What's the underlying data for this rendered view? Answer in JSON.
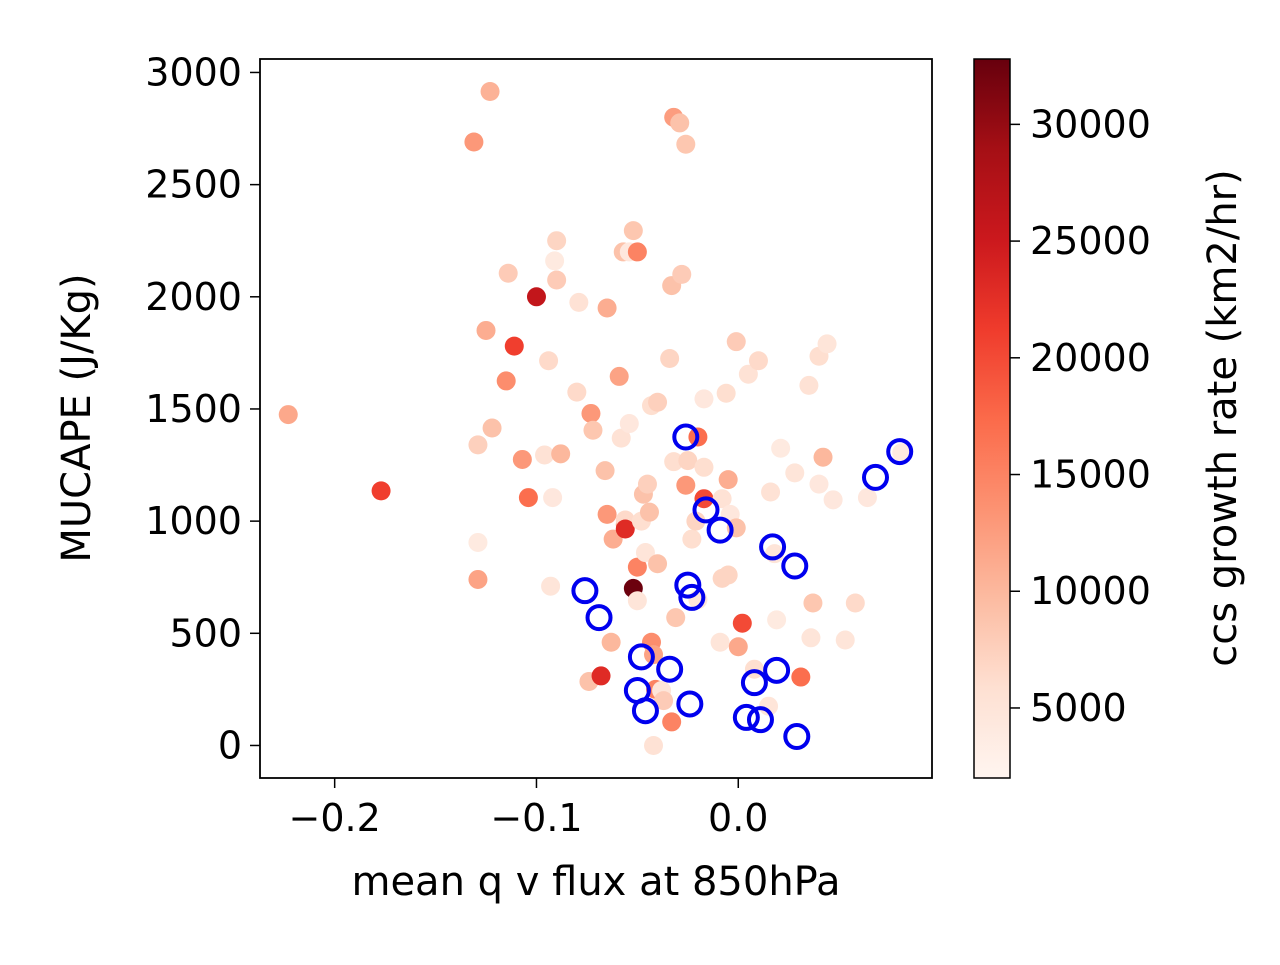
{
  "chart_data": {
    "type": "scatter",
    "title": "",
    "xlabel": "mean q v flux at 850hPa",
    "ylabel": "MUCAPE (J/Kg)",
    "xlim": [
      -0.237,
      0.096
    ],
    "ylim": [
      -145,
      3060
    ],
    "xticks": [
      -0.2,
      -0.1,
      0.0
    ],
    "xtick_labels": [
      "−0.2",
      "−0.1",
      "0.0"
    ],
    "yticks": [
      0,
      500,
      1000,
      1500,
      2000,
      2500,
      3000
    ],
    "ytick_labels": [
      "0",
      "500",
      "1000",
      "1500",
      "2000",
      "2500",
      "3000"
    ],
    "grid": false,
    "colorbar": {
      "label": "ccs growth rate (km2/hr)",
      "colormap": "Reds",
      "range": [
        2000,
        32800
      ],
      "ticks": [
        5000,
        10000,
        15000,
        20000,
        25000,
        30000
      ],
      "tick_labels": [
        "5000",
        "10000",
        "15000",
        "20000",
        "25000",
        "30000"
      ]
    },
    "series": [
      {
        "marker": "filled-circle",
        "points": [
          [
            -0.223,
            1475,
            11500
          ],
          [
            -0.177,
            1135,
            21000
          ],
          [
            -0.131,
            2690,
            13000
          ],
          [
            -0.123,
            2915,
            10500
          ],
          [
            -0.125,
            1850,
            11000
          ],
          [
            -0.129,
            1340,
            7500
          ],
          [
            -0.129,
            905,
            4000
          ],
          [
            -0.129,
            740,
            12000
          ],
          [
            -0.122,
            1415,
            9000
          ],
          [
            -0.114,
            2105,
            8000
          ],
          [
            -0.115,
            1625,
            14000
          ],
          [
            -0.111,
            1780,
            21000
          ],
          [
            -0.107,
            1275,
            13000
          ],
          [
            -0.104,
            1105,
            17000
          ],
          [
            -0.1,
            2000,
            26000
          ],
          [
            -0.096,
            1295,
            5500
          ],
          [
            -0.094,
            1715,
            6500
          ],
          [
            -0.093,
            710,
            5000
          ],
          [
            -0.092,
            1105,
            4500
          ],
          [
            -0.091,
            2160,
            4000
          ],
          [
            -0.09,
            2250,
            7000
          ],
          [
            -0.09,
            2075,
            8000
          ],
          [
            -0.088,
            1300,
            10000
          ],
          [
            -0.079,
            1975,
            5500
          ],
          [
            -0.08,
            1575,
            6500
          ],
          [
            -0.074,
            285,
            9000
          ],
          [
            -0.073,
            1480,
            13000
          ],
          [
            -0.072,
            1405,
            8500
          ],
          [
            -0.068,
            310,
            23000
          ],
          [
            -0.066,
            1225,
            9000
          ],
          [
            -0.065,
            1950,
            11000
          ],
          [
            -0.065,
            1030,
            13000
          ],
          [
            -0.063,
            460,
            10000
          ],
          [
            -0.062,
            920,
            11000
          ],
          [
            -0.059,
            1645,
            12000
          ],
          [
            -0.058,
            1370,
            5500
          ],
          [
            -0.057,
            2200,
            9000
          ],
          [
            -0.056,
            985,
            12000
          ],
          [
            -0.056,
            1005,
            6500
          ],
          [
            -0.056,
            965,
            23000
          ],
          [
            -0.054,
            2200,
            4500
          ],
          [
            -0.054,
            1435,
            4500
          ],
          [
            -0.052,
            700,
            32500
          ],
          [
            -0.052,
            2295,
            8500
          ],
          [
            -0.05,
            2200,
            15000
          ],
          [
            -0.05,
            795,
            15000
          ],
          [
            -0.05,
            645,
            5000
          ],
          [
            -0.048,
            1000,
            6000
          ],
          [
            -0.047,
            1120,
            9000
          ],
          [
            -0.046,
            860,
            5000
          ],
          [
            -0.045,
            1165,
            7500
          ],
          [
            -0.044,
            1040,
            9000
          ],
          [
            -0.043,
            1515,
            6000
          ],
          [
            -0.043,
            460,
            14000
          ],
          [
            -0.042,
            405,
            12000
          ],
          [
            -0.042,
            0,
            5500
          ],
          [
            -0.041,
            250,
            15000
          ],
          [
            -0.04,
            1530,
            7500
          ],
          [
            -0.04,
            810,
            9000
          ],
          [
            -0.038,
            245,
            5000
          ],
          [
            -0.037,
            200,
            8000
          ],
          [
            -0.034,
            1725,
            7000
          ],
          [
            -0.033,
            105,
            15000
          ],
          [
            -0.033,
            2050,
            9000
          ],
          [
            -0.032,
            2800,
            12500
          ],
          [
            -0.032,
            1265,
            6000
          ],
          [
            -0.031,
            570,
            8500
          ],
          [
            -0.029,
            2775,
            9000
          ],
          [
            -0.028,
            2100,
            8000
          ],
          [
            -0.026,
            2680,
            8500
          ],
          [
            -0.026,
            1160,
            13000
          ],
          [
            -0.025,
            1270,
            7000
          ],
          [
            -0.023,
            920,
            6000
          ],
          [
            -0.021,
            1000,
            7000
          ],
          [
            -0.02,
            1375,
            17000
          ],
          [
            -0.02,
            650,
            5000
          ],
          [
            -0.017,
            1545,
            4500
          ],
          [
            -0.017,
            1240,
            6000
          ],
          [
            -0.017,
            1100,
            20000
          ],
          [
            -0.009,
            460,
            5000
          ],
          [
            -0.008,
            1100,
            5500
          ],
          [
            -0.008,
            745,
            7000
          ],
          [
            -0.006,
            1570,
            6000
          ],
          [
            -0.005,
            1185,
            11000
          ],
          [
            -0.005,
            760,
            7000
          ],
          [
            -0.004,
            1030,
            4500
          ],
          [
            -0.001,
            1800,
            8000
          ],
          [
            -0.001,
            970,
            9000
          ],
          [
            0.0,
            440,
            11500
          ],
          [
            0.002,
            545,
            20000
          ],
          [
            0.005,
            1655,
            5500
          ],
          [
            0.008,
            340,
            6000
          ],
          [
            0.01,
            1715,
            6500
          ],
          [
            0.015,
            175,
            5000
          ],
          [
            0.016,
            1130,
            5500
          ],
          [
            0.018,
            855,
            5000
          ],
          [
            0.019,
            560,
            4000
          ],
          [
            0.021,
            1325,
            4000
          ],
          [
            0.028,
            1215,
            5000
          ],
          [
            0.031,
            305,
            17000
          ],
          [
            0.035,
            1605,
            5500
          ],
          [
            0.036,
            480,
            5000
          ],
          [
            0.037,
            635,
            8500
          ],
          [
            0.04,
            1735,
            6000
          ],
          [
            0.04,
            1165,
            4500
          ],
          [
            0.042,
            1285,
            10000
          ],
          [
            0.044,
            1790,
            5000
          ],
          [
            0.047,
            1095,
            4500
          ],
          [
            0.053,
            470,
            5000
          ],
          [
            0.058,
            635,
            6500
          ],
          [
            0.064,
            1105,
            4500
          ],
          [
            0.081,
            1305,
            4000
          ]
        ]
      },
      {
        "marker": "hollow-circle",
        "edge_color": "#0000ee",
        "points": [
          [
            -0.076,
            690
          ],
          [
            -0.069,
            570
          ],
          [
            -0.048,
            395
          ],
          [
            -0.05,
            245
          ],
          [
            -0.046,
            155
          ],
          [
            -0.034,
            340
          ],
          [
            -0.026,
            1375
          ],
          [
            -0.025,
            715
          ],
          [
            -0.023,
            660
          ],
          [
            -0.024,
            185
          ],
          [
            -0.016,
            1050
          ],
          [
            -0.009,
            960
          ],
          [
            0.004,
            125
          ],
          [
            0.008,
            280
          ],
          [
            0.011,
            115
          ],
          [
            0.017,
            885
          ],
          [
            0.019,
            335
          ],
          [
            0.028,
            800
          ],
          [
            0.029,
            40
          ],
          [
            0.068,
            1195
          ],
          [
            0.08,
            1310
          ]
        ]
      }
    ]
  }
}
